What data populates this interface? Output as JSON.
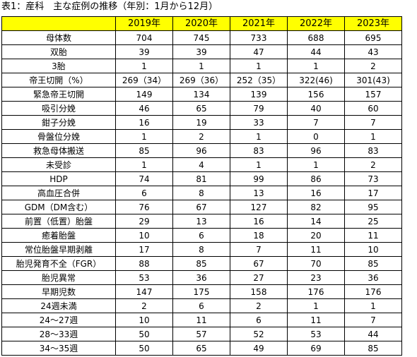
{
  "title": "表1：産科　主な症例の推移（年別：1月から12月）",
  "years": [
    "2019年",
    "2020年",
    "2021年",
    "2022年",
    "2023年"
  ],
  "rows": [
    {
      "label": "母体数",
      "values": [
        "704",
        "745",
        "733",
        "688",
        "695"
      ]
    },
    {
      "label": "双胎",
      "values": [
        "39",
        "39",
        "47",
        "44",
        "43"
      ]
    },
    {
      "label": "3胎",
      "values": [
        "1",
        "1",
        "1",
        "1",
        "2"
      ]
    },
    {
      "label": "帝王切開（%）",
      "values": [
        "269（34）",
        "269（36）",
        "252（35）",
        "322(46)",
        "301(43)"
      ]
    },
    {
      "label": "緊急帝王切開",
      "values": [
        "149",
        "134",
        "139",
        "156",
        "157"
      ]
    },
    {
      "label": "吸引分娩",
      "values": [
        "46",
        "65",
        "79",
        "40",
        "60"
      ]
    },
    {
      "label": "鉗子分娩",
      "values": [
        "16",
        "19",
        "33",
        "7",
        "7"
      ]
    },
    {
      "label": "骨盤位分娩",
      "values": [
        "1",
        "2",
        "1",
        "0",
        "1"
      ]
    },
    {
      "label": "救急母体搬送",
      "values": [
        "85",
        "96",
        "83",
        "96",
        "83"
      ]
    },
    {
      "label": "未受診",
      "values": [
        "1",
        "4",
        "1",
        "1",
        "2"
      ]
    },
    {
      "label": "HDP",
      "values": [
        "74",
        "81",
        "99",
        "86",
        "73"
      ]
    },
    {
      "label": "高血圧合併",
      "values": [
        "6",
        "8",
        "13",
        "16",
        "17"
      ]
    },
    {
      "label": "GDM（DM含む）",
      "values": [
        "76",
        "67",
        "127",
        "82",
        "95"
      ]
    },
    {
      "label": "前置（低置）胎盤",
      "values": [
        "29",
        "13",
        "16",
        "14",
        "25"
      ]
    },
    {
      "label": "癒着胎盤",
      "values": [
        "10",
        "6",
        "18",
        "20",
        "11"
      ]
    },
    {
      "label": "常位胎盤早期剥離",
      "values": [
        "17",
        "8",
        "7",
        "11",
        "10"
      ]
    },
    {
      "label": "胎児発育不全（FGR）",
      "values": [
        "88",
        "85",
        "67",
        "70",
        "85"
      ]
    },
    {
      "label": "胎児異常",
      "values": [
        "53",
        "36",
        "27",
        "23",
        "36"
      ]
    },
    {
      "label": "早期児数",
      "values": [
        "147",
        "175",
        "158",
        "176",
        "176"
      ]
    },
    {
      "label": "24週未満",
      "values": [
        "2",
        "6",
        "2",
        "1",
        "1"
      ]
    },
    {
      "label": "24～27週",
      "values": [
        "10",
        "11",
        "6",
        "11",
        "7"
      ]
    },
    {
      "label": "28～33週",
      "values": [
        "50",
        "57",
        "52",
        "53",
        "44"
      ]
    },
    {
      "label": "34～35週",
      "values": [
        "50",
        "65",
        "49",
        "69",
        "85"
      ]
    }
  ]
}
